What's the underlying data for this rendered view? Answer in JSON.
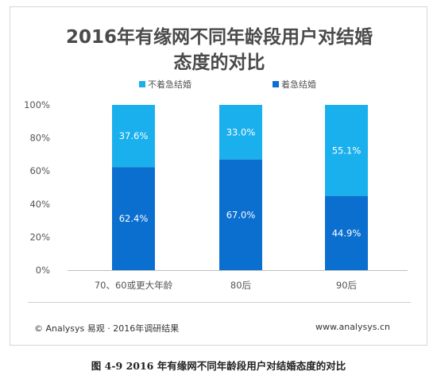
{
  "title": {
    "line1": "2016年有缘网不同年龄段用户对结婚",
    "line2": "态度的对比"
  },
  "footer": {
    "source": "© Analysys 易观 · 2016年调研结果",
    "website": "www.analysys.cn"
  },
  "caption": "图  4-9 2016 年有缘网不同年龄段用户对结婚态度的对比",
  "chart_data": {
    "type": "bar",
    "stacked": true,
    "categories": [
      "70、60或更大年龄",
      "80后",
      "90后"
    ],
    "series": [
      {
        "name": "着急结婚",
        "values": [
          62.4,
          67.0,
          44.9
        ],
        "labels": [
          "62.4%",
          "67.0%",
          "44.9%"
        ],
        "color": "#0b6fd0"
      },
      {
        "name": "不着急结婚",
        "values": [
          37.6,
          33.0,
          55.1
        ],
        "labels": [
          "37.6%",
          "33.0%",
          "55.1%"
        ],
        "color": "#1ab0ee"
      }
    ],
    "legend_order": [
      "不着急结婚",
      "着急结婚"
    ],
    "y_ticks": [
      "0%",
      "20%",
      "40%",
      "60%",
      "80%",
      "100%"
    ],
    "ylim": [
      0,
      100
    ],
    "grid": false,
    "legend_position": "top"
  }
}
